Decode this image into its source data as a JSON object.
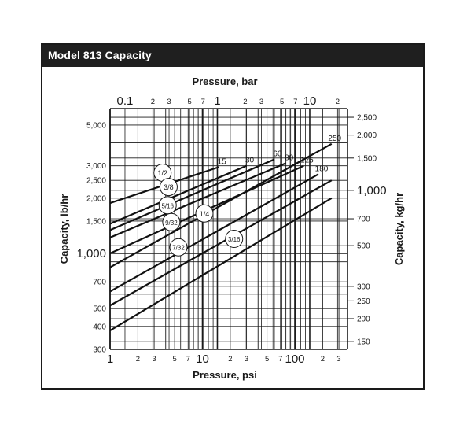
{
  "title": "Model 813 Capacity",
  "chart_data": {
    "type": "line",
    "scale": "log-log",
    "grid": true,
    "x_axis": {
      "label": "Pressure, psi",
      "range": [
        1,
        300
      ],
      "major_ticks": [
        "1",
        "10",
        "100"
      ],
      "minor_ticks": [
        "2",
        "3",
        "5",
        "7",
        "2",
        "3",
        "5",
        "7",
        "2",
        "3"
      ]
    },
    "top_axis": {
      "label": "Pressure, bar",
      "major_ticks": [
        "0.1",
        "1",
        "10"
      ],
      "minor_ticks": [
        "2",
        "3",
        "5",
        "7",
        "2",
        "3",
        "5",
        "7",
        "2"
      ]
    },
    "y_axis": {
      "label": "Capacity, lb/hr",
      "range": [
        300,
        6000
      ],
      "ticks": [
        "300",
        "400",
        "500",
        "700",
        "1,000",
        "1,500",
        "2,000",
        "2,500",
        "3,000",
        "5,000"
      ]
    },
    "right_axis": {
      "label": "Capacity, kg/hr",
      "ticks": [
        "150",
        "200",
        "250",
        "300",
        "500",
        "700",
        "1,000",
        "1,500",
        "2,000",
        "2,500"
      ]
    },
    "series": [
      {
        "name": "1/2",
        "end_label": "15",
        "x": [
          1,
          15
        ],
        "y": [
          1880,
          2950
        ]
      },
      {
        "name": "3/8",
        "end_label": "30",
        "x": [
          1,
          30
        ],
        "y": [
          1450,
          3000
        ]
      },
      {
        "name": "5/16",
        "end_label": "60",
        "x": [
          1,
          60
        ],
        "y": [
          1340,
          3250
        ]
      },
      {
        "name": "9/32",
        "end_label": "80",
        "x": [
          1,
          80
        ],
        "y": [
          1220,
          3100
        ]
      },
      {
        "name": "1/4",
        "end_label": "125",
        "x": [
          1,
          125
        ],
        "y": [
          1000,
          3000
        ]
      },
      {
        "name": "3/16",
        "end_label": "180",
        "x": [
          1,
          180
        ],
        "y": [
          620,
          2700
        ]
      },
      {
        "name": "7/32",
        "end_label": "250",
        "x": [
          1,
          250
        ],
        "y": [
          840,
          3950
        ]
      },
      {
        "name": "",
        "end_label": "",
        "x": [
          1,
          250
        ],
        "y": [
          520,
          2500
        ]
      },
      {
        "name": "",
        "end_label": "",
        "x": [
          1,
          250
        ],
        "y": [
          380,
          2000
        ]
      }
    ],
    "circle_labels": [
      {
        "text": "1/2",
        "x": 3.7,
        "y": 2750
      },
      {
        "text": "3/8",
        "x": 4.3,
        "y": 2300
      },
      {
        "text": "5/16",
        "x": 4.2,
        "y": 1830
      },
      {
        "text": "9/32",
        "x": 4.6,
        "y": 1480
      },
      {
        "text": "1/4",
        "x": 10.5,
        "y": 1650
      },
      {
        "text": "7/32",
        "x": 5.5,
        "y": 1080
      },
      {
        "text": "3/16",
        "x": 22,
        "y": 1200
      }
    ]
  }
}
